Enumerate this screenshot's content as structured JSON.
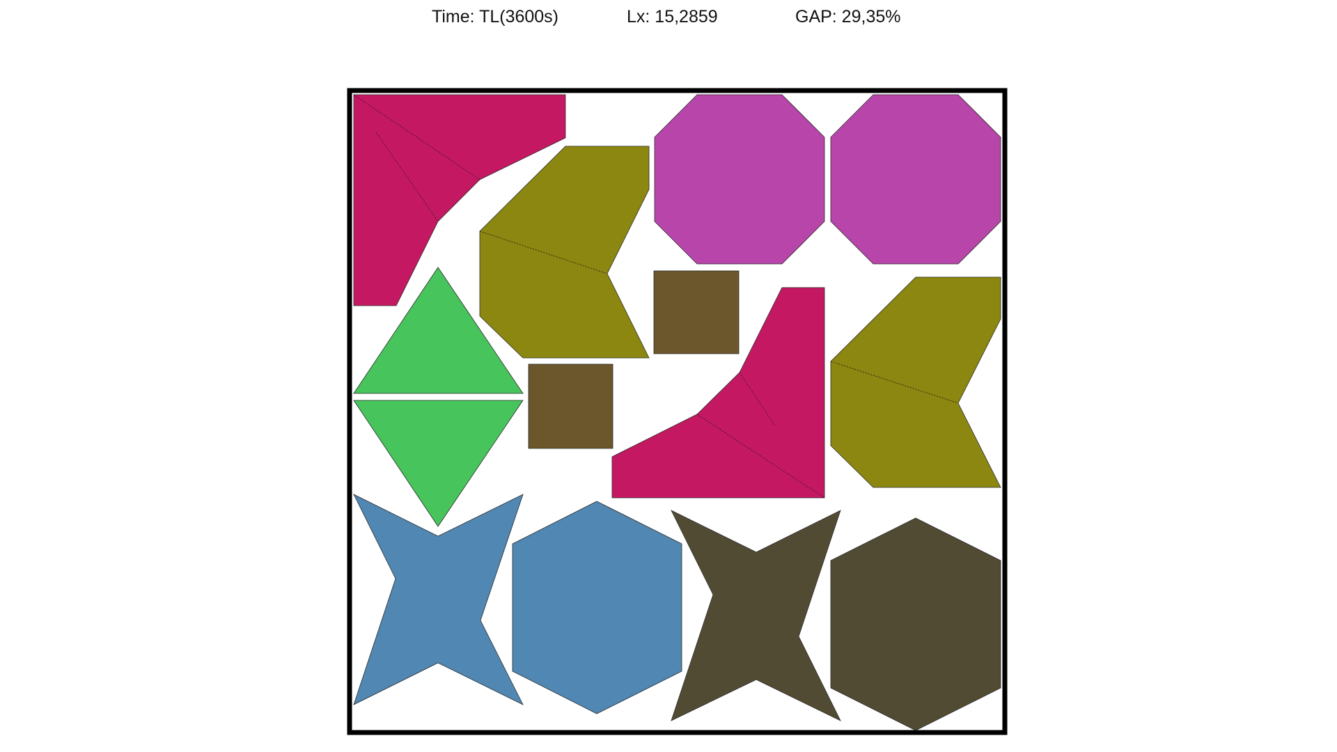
{
  "header": {
    "time_text": "Time: TL(3600s)",
    "lx_text": "Lx: 15,2859",
    "gap_text": "GAP: 29,35%"
  },
  "palette": {
    "border": "#000000",
    "crimson": "#c41962",
    "olive": "#8c8710",
    "magenta": "#b845aa",
    "green": "#47c45c",
    "brown": "#6b572b",
    "steel_blue": "#5087b3",
    "dark_olive": "#524b33"
  },
  "pieces": [
    {
      "type": "l-shape",
      "color_key": "crimson"
    },
    {
      "type": "chevron",
      "color_key": "olive"
    },
    {
      "type": "octagon",
      "color_key": "magenta"
    },
    {
      "type": "octagon",
      "color_key": "magenta"
    },
    {
      "type": "triangle",
      "color_key": "green"
    },
    {
      "type": "triangle",
      "color_key": "green"
    },
    {
      "type": "square",
      "color_key": "brown"
    },
    {
      "type": "square",
      "color_key": "brown"
    },
    {
      "type": "l-shape",
      "color_key": "crimson"
    },
    {
      "type": "chevron",
      "color_key": "olive"
    },
    {
      "type": "four-point-star",
      "color_key": "steel_blue"
    },
    {
      "type": "four-point-star",
      "color_key": "steel_blue"
    },
    {
      "type": "hexagon",
      "color_key": "dark_olive"
    },
    {
      "type": "hexagon",
      "color_key": "dark_olive"
    }
  ]
}
